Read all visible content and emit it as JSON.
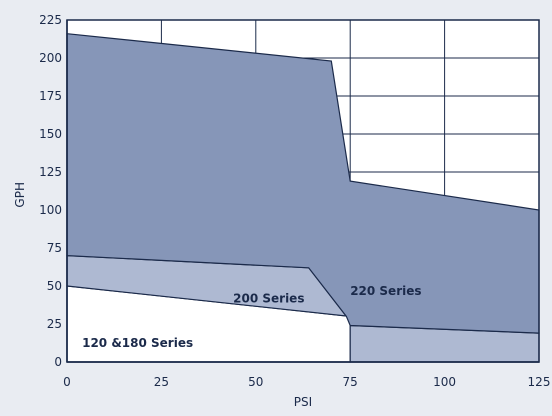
{
  "chart_data": {
    "type": "area",
    "xlabel": "PSI",
    "ylabel": "GPH",
    "xlim": [
      0,
      125
    ],
    "ylim": [
      0,
      225
    ],
    "x_ticks": [
      "0",
      "25",
      "50",
      "75",
      "100",
      "125"
    ],
    "y_ticks": [
      "0",
      "25",
      "50",
      "75",
      "100",
      "125",
      "150",
      "175",
      "200",
      "225"
    ],
    "grid": true,
    "series": [
      {
        "name": "120 &180 Series",
        "color": "#ffffff",
        "points": [
          [
            0,
            50
          ],
          [
            75,
            30
          ],
          [
            75,
            0
          ],
          [
            0,
            0
          ]
        ]
      },
      {
        "name": "200 Series",
        "color": "#aeb9d2",
        "points": [
          [
            0,
            70
          ],
          [
            64,
            62
          ],
          [
            74,
            30
          ],
          [
            75,
            30
          ],
          [
            75,
            24
          ],
          [
            125,
            19
          ],
          [
            125,
            0
          ],
          [
            75,
            0
          ],
          [
            75,
            30
          ],
          [
            0,
            50
          ]
        ]
      },
      {
        "name": "220 Series",
        "color": "#8696b8",
        "points": [
          [
            0,
            216
          ],
          [
            70,
            198
          ],
          [
            75,
            119
          ],
          [
            125,
            100
          ],
          [
            125,
            19
          ],
          [
            75,
            24
          ],
          [
            74,
            30
          ],
          [
            64,
            62
          ],
          [
            0,
            70
          ]
        ]
      }
    ]
  }
}
